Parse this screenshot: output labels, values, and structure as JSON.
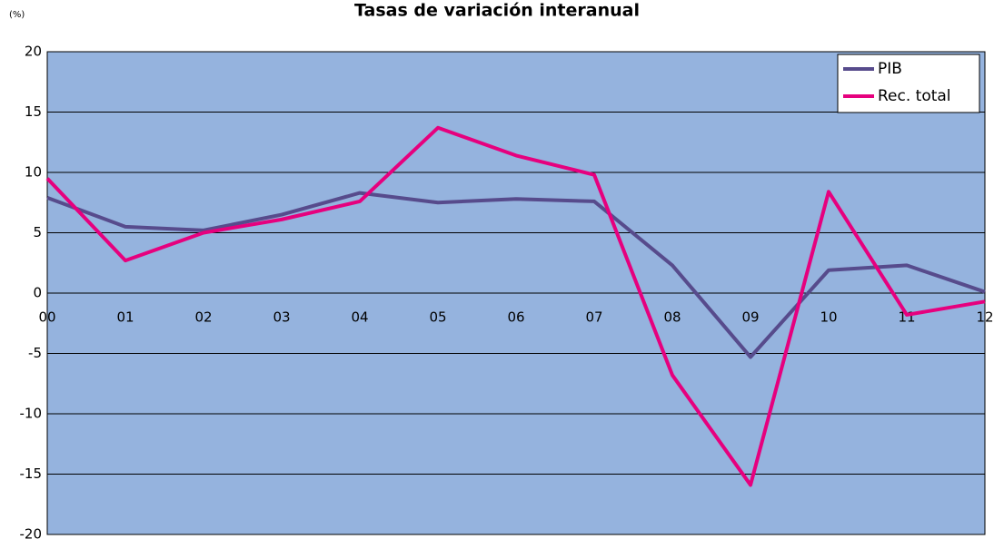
{
  "chart_data": {
    "type": "line",
    "title": "Tasas de variación interanual",
    "y_label": "(%)",
    "categories": [
      "00",
      "01",
      "02",
      "03",
      "04",
      "05",
      "06",
      "07",
      "08",
      "09",
      "10",
      "11",
      "12"
    ],
    "series": [
      {
        "name": "PIB",
        "color": "#574b8c",
        "values": [
          7.9,
          5.5,
          5.2,
          6.5,
          8.3,
          7.5,
          7.8,
          7.6,
          2.3,
          -5.3,
          1.9,
          2.3,
          0.1
        ]
      },
      {
        "name": "Rec. total",
        "color": "#e6007e",
        "values": [
          9.5,
          2.7,
          5.0,
          6.1,
          7.6,
          13.7,
          11.4,
          9.8,
          -6.8,
          -15.9,
          8.4,
          -1.8,
          -0.7
        ]
      }
    ],
    "ylim": [
      -20,
      20
    ],
    "yticks": [
      -20,
      -15,
      -10,
      -5,
      0,
      5,
      10,
      15,
      20
    ],
    "grid": true,
    "legend": "top-right"
  }
}
